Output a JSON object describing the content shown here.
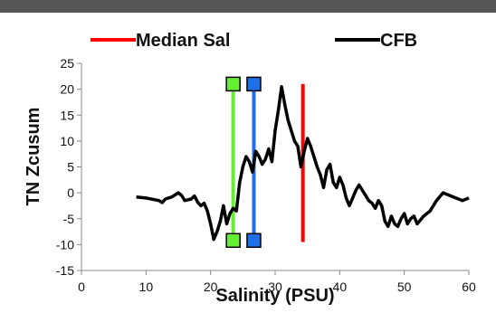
{
  "chart_data": {
    "type": "line",
    "title": "",
    "xlabel": "Salinity (PSU)",
    "ylabel": "TN Zcusum",
    "xlim": [
      0,
      60
    ],
    "ylim": [
      -15,
      25
    ],
    "x_ticks": [
      0,
      10,
      20,
      30,
      40,
      50,
      60
    ],
    "y_ticks": [
      25,
      20,
      15,
      10,
      5,
      0,
      -5,
      -10,
      -15
    ],
    "grid": false,
    "legend_position": "top",
    "legend": [
      {
        "label": "Median Sal",
        "color": "#ff0000"
      },
      {
        "label": "CFB",
        "color": "#000000"
      }
    ],
    "series": [
      {
        "name": "CFB",
        "color": "#000000",
        "points": [
          [
            8.5,
            -0.8
          ],
          [
            10,
            -1.0
          ],
          [
            12,
            -1.5
          ],
          [
            12.5,
            -1.9
          ],
          [
            13,
            -1.2
          ],
          [
            14,
            -0.8
          ],
          [
            15,
            0.0
          ],
          [
            15.5,
            -0.5
          ],
          [
            16,
            -1.5
          ],
          [
            17,
            -1.2
          ],
          [
            17.5,
            -0.6
          ],
          [
            18,
            -1.8
          ],
          [
            18.5,
            -2.5
          ],
          [
            19,
            -2.0
          ],
          [
            19.5,
            -3.5
          ],
          [
            20,
            -6.0
          ],
          [
            20.5,
            -9.0
          ],
          [
            21,
            -7.5
          ],
          [
            21.5,
            -5.5
          ],
          [
            22,
            -2.5
          ],
          [
            22.5,
            -6.0
          ],
          [
            23,
            -4.0
          ],
          [
            23.5,
            -3.0
          ],
          [
            24,
            -3.5
          ],
          [
            24.5,
            2.0
          ],
          [
            25,
            5.0
          ],
          [
            25.5,
            7.0
          ],
          [
            26,
            6.0
          ],
          [
            26.5,
            4.0
          ],
          [
            27,
            8.0
          ],
          [
            27.5,
            7.0
          ],
          [
            28,
            5.5
          ],
          [
            28.5,
            6.5
          ],
          [
            29,
            8.5
          ],
          [
            29.5,
            6.0
          ],
          [
            30,
            12.0
          ],
          [
            30.5,
            16.0
          ],
          [
            31,
            20.5
          ],
          [
            31.5,
            17.0
          ],
          [
            32,
            14.0
          ],
          [
            32.5,
            12.0
          ],
          [
            33,
            10.0
          ],
          [
            33.5,
            9.0
          ],
          [
            34,
            5.0
          ],
          [
            34.5,
            8.0
          ],
          [
            35,
            10.5
          ],
          [
            35.5,
            9.0
          ],
          [
            36,
            7.0
          ],
          [
            36.5,
            5.0
          ],
          [
            37,
            3.5
          ],
          [
            37.5,
            1.0
          ],
          [
            38,
            4.5
          ],
          [
            38.5,
            5.5
          ],
          [
            39,
            2.0
          ],
          [
            39.5,
            1.0
          ],
          [
            40,
            3.0
          ],
          [
            40.5,
            1.5
          ],
          [
            41,
            -1.0
          ],
          [
            41.5,
            -2.5
          ],
          [
            42,
            -1.0
          ],
          [
            42.5,
            0.5
          ],
          [
            43,
            1.5
          ],
          [
            43.5,
            0.5
          ],
          [
            44,
            -0.5
          ],
          [
            44.5,
            -1.5
          ],
          [
            45,
            -2.0
          ],
          [
            45.5,
            -3.0
          ],
          [
            46,
            -1.5
          ],
          [
            46.5,
            -2.5
          ],
          [
            47,
            -5.5
          ],
          [
            47.5,
            -6.5
          ],
          [
            48,
            -4.5
          ],
          [
            48.5,
            -6.0
          ],
          [
            49,
            -6.5
          ],
          [
            49.5,
            -5.0
          ],
          [
            50,
            -4.0
          ],
          [
            50.5,
            -6.0
          ],
          [
            51,
            -5.0
          ],
          [
            51.5,
            -4.5
          ],
          [
            52,
            -6.0
          ],
          [
            53,
            -4.5
          ],
          [
            54,
            -3.5
          ],
          [
            55,
            -1.5
          ],
          [
            56,
            0.0
          ],
          [
            57,
            -0.5
          ],
          [
            58,
            -1.0
          ],
          [
            59,
            -1.5
          ],
          [
            60,
            -1.0
          ]
        ]
      }
    ],
    "vertical_markers": [
      {
        "label": "Median Sal",
        "x": 34.3,
        "y_from": -9.5,
        "y_to": 21,
        "color": "#ff0000",
        "end_markers": false
      },
      {
        "x": 23.5,
        "y_from": -9.2,
        "y_to": 21,
        "color": "#66ee33",
        "end_markers": true
      },
      {
        "x": 26.7,
        "y_from": -9.2,
        "y_to": 21,
        "color": "#1e6fe8",
        "end_markers": true
      }
    ]
  }
}
